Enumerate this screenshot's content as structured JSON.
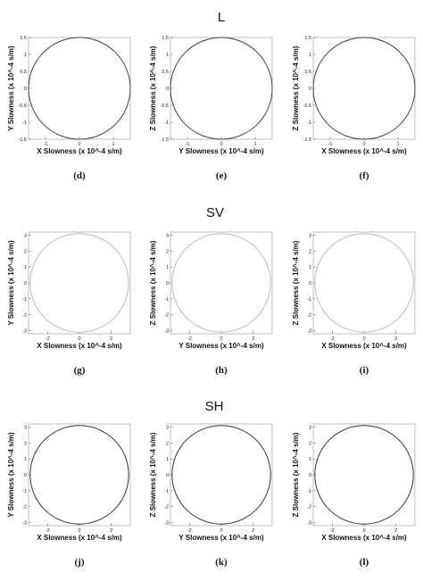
{
  "section_titles": [
    "L",
    "SV",
    "SH"
  ],
  "chart_data": [
    {
      "type": "line",
      "panel": "(d)",
      "section": "L",
      "xlabel": "X Slowness (x 10^-4 s/m)",
      "ylabel": "Y Slowness (x 10^-4 s/m)",
      "xlim": [
        -1.5,
        1.5
      ],
      "ylim": [
        -1.5,
        1.5
      ],
      "xticks": [
        "-1",
        "0",
        "1"
      ],
      "yticks": [
        "1.5",
        "1",
        "0.5",
        "0",
        "-0.5",
        "-1",
        "-1.5"
      ],
      "series": [
        {
          "shape": "circle",
          "radius": 1.5,
          "color": "#444444"
        }
      ]
    },
    {
      "type": "line",
      "panel": "(e)",
      "section": "L",
      "xlabel": "Y Slowness (x 10^-4 s/m)",
      "ylabel": "Z Slowness (x 10^-4 s/m)",
      "xlim": [
        -1.5,
        1.5
      ],
      "ylim": [
        -1.5,
        1.5
      ],
      "xticks": [
        "-1",
        "0",
        "1"
      ],
      "yticks": [
        "1.5",
        "1",
        "0.5",
        "0",
        "-0.5",
        "-1",
        "-1.5"
      ],
      "series": [
        {
          "shape": "circle",
          "radius": 1.5,
          "color": "#444444"
        }
      ]
    },
    {
      "type": "line",
      "panel": "(f)",
      "section": "L",
      "xlabel": "X Slowness (x 10^-4 s/m)",
      "ylabel": "Z Slowness (x 10^-4 s/m)",
      "xlim": [
        -1.5,
        1.5
      ],
      "ylim": [
        -1.5,
        1.5
      ],
      "xticks": [
        "-1",
        "0",
        "1"
      ],
      "yticks": [
        "1.5",
        "1",
        "0.5",
        "0",
        "-0.5",
        "-1",
        "-1.5"
      ],
      "series": [
        {
          "shape": "circle",
          "radius": 1.5,
          "color": "#444444"
        }
      ]
    },
    {
      "type": "line",
      "panel": "(g)",
      "section": "SV",
      "xlabel": "X Slowness (x 10^-4 s/m)",
      "ylabel": "Y Slowness (x 10^-4 s/m)",
      "xlim": [
        -3.2,
        3.2
      ],
      "ylim": [
        -3.2,
        3.2
      ],
      "xticks": [
        "-2",
        "0",
        "2"
      ],
      "yticks": [
        "3",
        "2",
        "1",
        "0",
        "-1",
        "-2",
        "-3"
      ],
      "series": [
        {
          "shape": "circle",
          "radius": 3.1,
          "color": "#bbbbbb"
        }
      ]
    },
    {
      "type": "line",
      "panel": "(h)",
      "section": "SV",
      "xlabel": "Y Slowness (x 10^-4 s/m)",
      "ylabel": "Z Slowness (x 10^-4 s/m)",
      "xlim": [
        -3.2,
        3.2
      ],
      "ylim": [
        -3.2,
        3.2
      ],
      "xticks": [
        "-2",
        "0",
        "2"
      ],
      "yticks": [
        "3",
        "2",
        "1",
        "0",
        "-1",
        "-2",
        "-3"
      ],
      "series": [
        {
          "shape": "circle",
          "radius": 3.1,
          "color": "#bbbbbb"
        }
      ]
    },
    {
      "type": "line",
      "panel": "(i)",
      "section": "SV",
      "xlabel": "X Slowness (x 10^-4 s/m)",
      "ylabel": "Z Slowness (x 10^-4 s/m)",
      "xlim": [
        -3.2,
        3.2
      ],
      "ylim": [
        -3.2,
        3.2
      ],
      "xticks": [
        "-2",
        "0",
        "2"
      ],
      "yticks": [
        "3",
        "2",
        "1",
        "0",
        "-1",
        "-2",
        "-3"
      ],
      "series": [
        {
          "shape": "circle",
          "radius": 3.1,
          "color": "#bbbbbb"
        }
      ]
    },
    {
      "type": "line",
      "panel": "(j)",
      "section": "SH",
      "xlabel": "X Slowness (x 10^-4 s/m)",
      "ylabel": "Y Slowness (x 10^-4 s/m)",
      "xlim": [
        -3.2,
        3.2
      ],
      "ylim": [
        -3.2,
        3.2
      ],
      "xticks": [
        "-2",
        "0",
        "2"
      ],
      "yticks": [
        "3",
        "2",
        "1",
        "0",
        "-1",
        "-2",
        "-3"
      ],
      "series": [
        {
          "shape": "circle",
          "radius": 3.1,
          "color": "#333333"
        }
      ]
    },
    {
      "type": "line",
      "panel": "(k)",
      "section": "SH",
      "xlabel": "Y Slowness (x 10^-4 s/m)",
      "ylabel": "Z Slowness (x 10^-4 s/m)",
      "xlim": [
        -3.2,
        3.2
      ],
      "ylim": [
        -3.2,
        3.2
      ],
      "xticks": [
        "-2",
        "0",
        "2"
      ],
      "yticks": [
        "3",
        "2",
        "1",
        "0",
        "-1",
        "-2",
        "-3"
      ],
      "series": [
        {
          "shape": "circle",
          "radius": 3.1,
          "color": "#333333"
        }
      ]
    },
    {
      "type": "line",
      "panel": "(l)",
      "section": "SH",
      "xlabel": "X Slowness (x 10^-4 s/m)",
      "ylabel": "Z Slowness (x 10^-4 s/m)",
      "xlim": [
        -3.2,
        3.2
      ],
      "ylim": [
        -3.2,
        3.2
      ],
      "xticks": [
        "-2",
        "0",
        "2"
      ],
      "yticks": [
        "3",
        "2",
        "1",
        "0",
        "-1",
        "-2",
        "-3"
      ],
      "series": [
        {
          "shape": "circle",
          "radius": 3.1,
          "color": "#333333"
        }
      ]
    }
  ]
}
